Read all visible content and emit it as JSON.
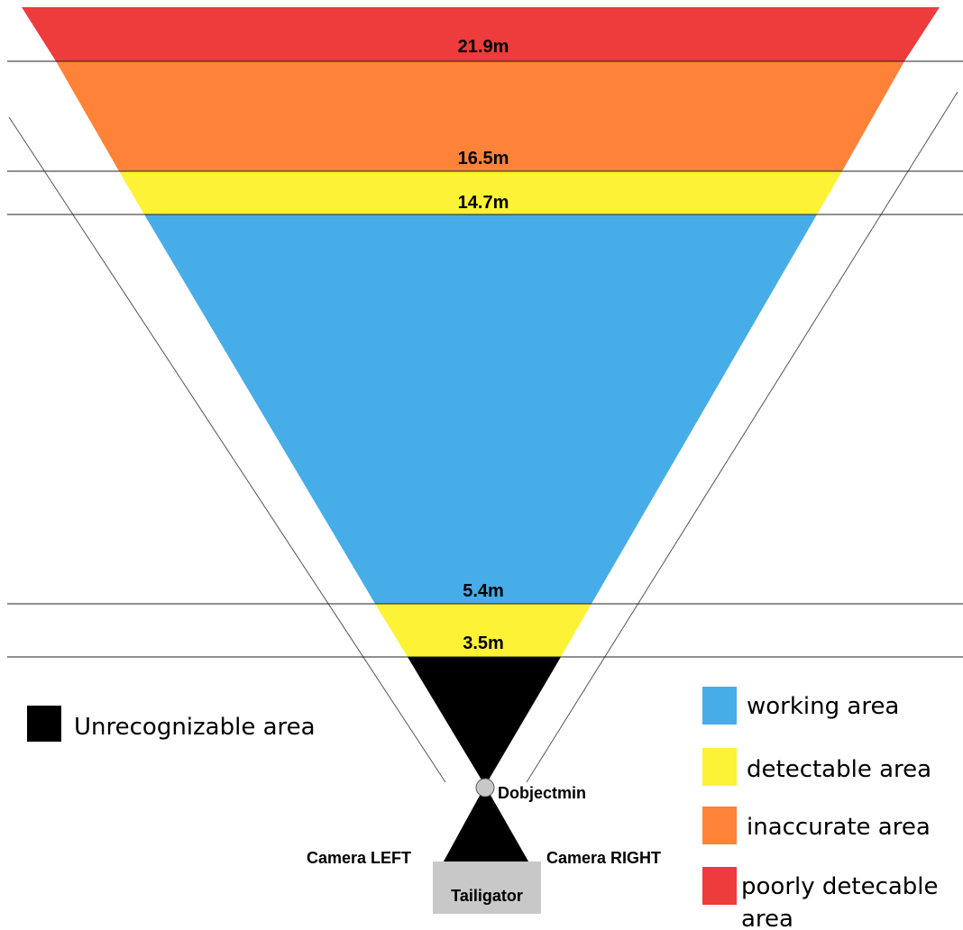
{
  "colors": {
    "working": "#47ADE8",
    "detectable": "#FDF236",
    "inaccurate": "#FE8238",
    "poorly": "#EE3B3C",
    "unrecognizable": "#000000",
    "vehicle": "#C8C8C8",
    "object_point": "#C8C8C8"
  },
  "distances": {
    "d21_9": "21.9m",
    "d16_5": "16.5m",
    "d14_7": "14.7m",
    "d5_4": "5.4m",
    "d3_5": "3.5m"
  },
  "labels": {
    "object_min": "Dobjectmin",
    "camera_left": "Camera LEFT",
    "camera_right": "Camera RIGHT",
    "vehicle": "Tailigator"
  },
  "legend": {
    "unrecognizable": "Unrecognizable area",
    "working": "working area",
    "detectable": "detectable area",
    "inaccurate": "inaccurate area",
    "poorly_line1": "poorly detecable",
    "poorly_line2": "area"
  }
}
